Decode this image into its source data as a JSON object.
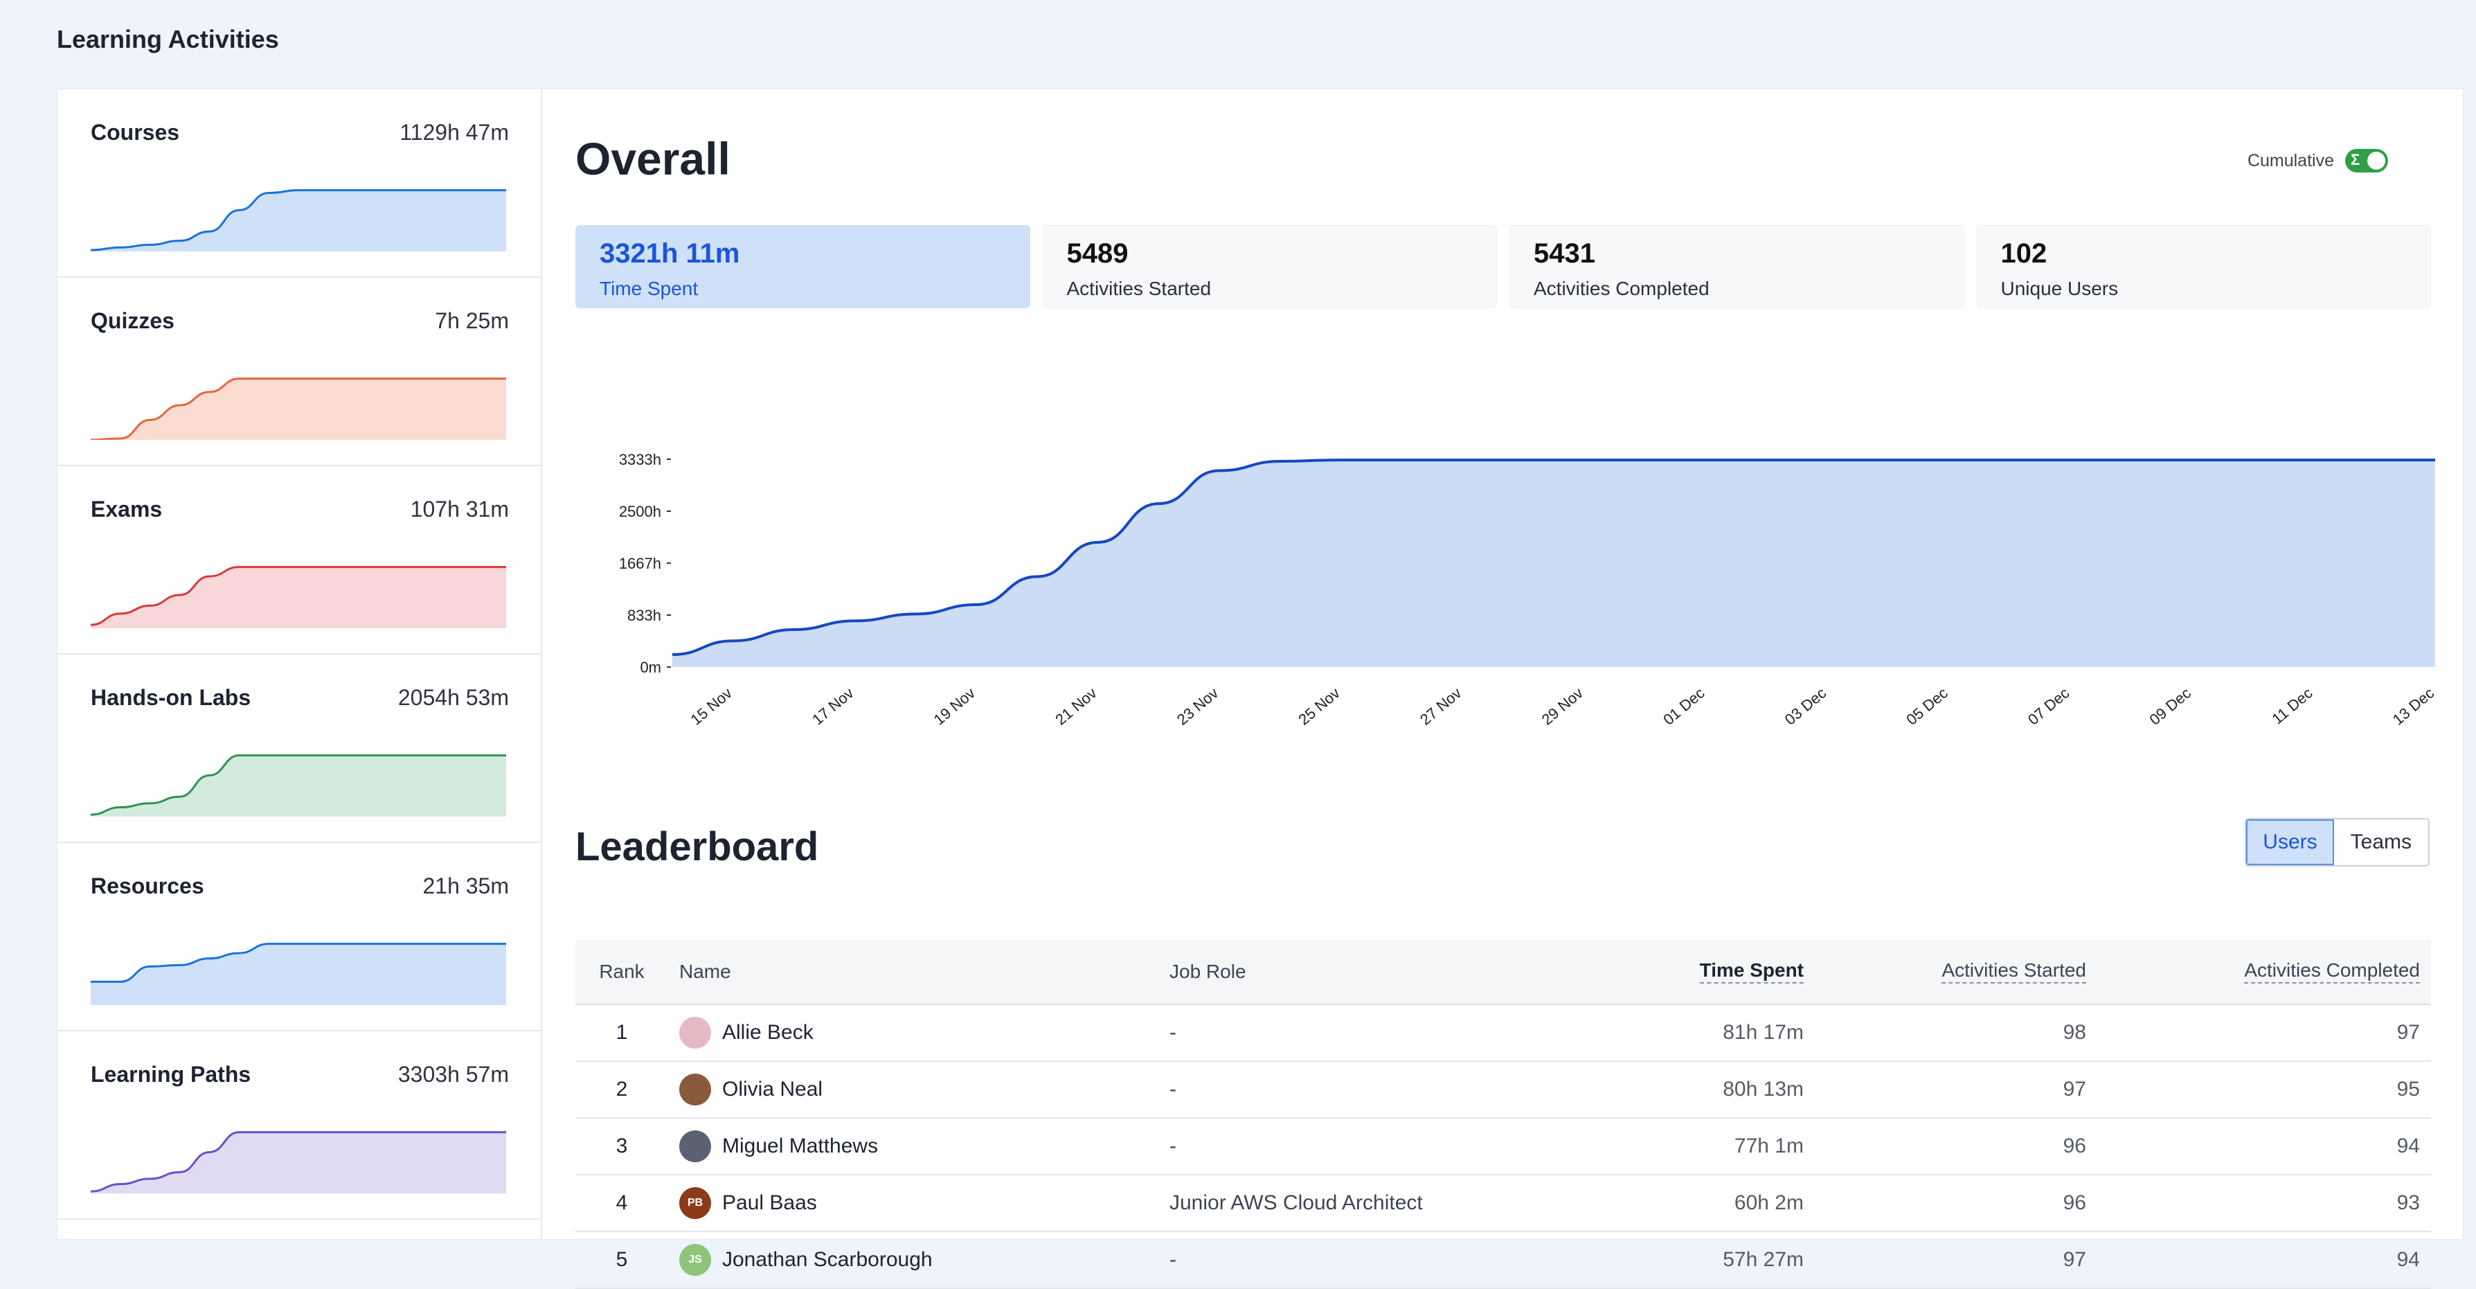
{
  "page": {
    "title": "Learning Activities"
  },
  "sidebar": {
    "items": [
      {
        "label": "Courses",
        "value": "1129h 47m",
        "color": "#1a73d9",
        "fill": "#cfe1f8",
        "spark": [
          0.02,
          0.06,
          0.1,
          0.16,
          0.3,
          0.62,
          0.88,
          0.92,
          0.92,
          0.92,
          0.92,
          0.92,
          0.92,
          0.92,
          0.92
        ]
      },
      {
        "label": "Quizzes",
        "value": "7h 25m",
        "color": "#e2693a",
        "fill": "#fbdcd1",
        "spark": [
          0.0,
          0.02,
          0.3,
          0.52,
          0.72,
          0.92,
          0.92,
          0.92,
          0.92,
          0.92,
          0.92,
          0.92,
          0.92,
          0.92,
          0.92
        ]
      },
      {
        "label": "Exams",
        "value": "107h 31m",
        "color": "#d63b3b",
        "fill": "#f8d7d9",
        "spark": [
          0.05,
          0.22,
          0.34,
          0.5,
          0.78,
          0.92,
          0.92,
          0.92,
          0.92,
          0.92,
          0.92,
          0.92,
          0.92,
          0.92,
          0.92
        ]
      },
      {
        "label": "Hands-on Labs",
        "value": "2054h 53m",
        "color": "#2f9453",
        "fill": "#d3ebdd",
        "spark": [
          0.03,
          0.14,
          0.2,
          0.3,
          0.62,
          0.92,
          0.92,
          0.92,
          0.92,
          0.92,
          0.92,
          0.92,
          0.92,
          0.92,
          0.92
        ]
      },
      {
        "label": "Resources",
        "value": "21h 35m",
        "color": "#1a73d9",
        "fill": "#cfe1f8",
        "spark": [
          0.35,
          0.35,
          0.58,
          0.6,
          0.7,
          0.78,
          0.92,
          0.92,
          0.92,
          0.92,
          0.92,
          0.92,
          0.92,
          0.92,
          0.92
        ]
      },
      {
        "label": "Learning Paths",
        "value": "3303h 57m",
        "color": "#6a4fc9",
        "fill": "#e0dbf3",
        "spark": [
          0.03,
          0.14,
          0.22,
          0.32,
          0.62,
          0.92,
          0.92,
          0.92,
          0.92,
          0.92,
          0.92,
          0.92,
          0.92,
          0.92,
          0.92
        ]
      }
    ]
  },
  "overall": {
    "title": "Overall",
    "cumulative_label": "Cumulative",
    "cumulative_on": true,
    "toggle_symbol": "Σ",
    "stats": [
      {
        "value": "3321h 11m",
        "label": "Time Spent",
        "active": true
      },
      {
        "value": "5489",
        "label": "Activities Started",
        "active": false
      },
      {
        "value": "5431",
        "label": "Activities Completed",
        "active": false
      },
      {
        "value": "102",
        "label": "Unique Users",
        "active": false
      }
    ]
  },
  "chart_data": {
    "type": "area",
    "title": "",
    "xlabel": "",
    "ylabel": "",
    "color": "#1748c0",
    "fill": "#cddcf5",
    "ylim": [
      0,
      3333
    ],
    "y_ticks": [
      "0m",
      "833h",
      "1667h",
      "2500h",
      "3333h"
    ],
    "x_tick_labels": [
      "15 Nov",
      "17 Nov",
      "19 Nov",
      "21 Nov",
      "23 Nov",
      "25 Nov",
      "27 Nov",
      "29 Nov",
      "01 Dec",
      "03 Dec",
      "05 Dec",
      "07 Dec",
      "09 Dec",
      "11 Dec",
      "13 Dec"
    ],
    "x": [
      "14 Nov",
      "15 Nov",
      "16 Nov",
      "17 Nov",
      "18 Nov",
      "19 Nov",
      "20 Nov",
      "21 Nov",
      "22 Nov",
      "23 Nov",
      "24 Nov",
      "25 Nov",
      "26 Nov",
      "27 Nov",
      "28 Nov",
      "29 Nov",
      "30 Nov",
      "01 Dec",
      "02 Dec",
      "03 Dec",
      "04 Dec",
      "05 Dec",
      "06 Dec",
      "07 Dec",
      "08 Dec",
      "09 Dec",
      "10 Dec",
      "11 Dec",
      "12 Dec",
      "13 Dec"
    ],
    "values": [
      200,
      420,
      600,
      740,
      850,
      1000,
      1450,
      2000,
      2620,
      3150,
      3300,
      3321,
      3321,
      3321,
      3321,
      3321,
      3321,
      3321,
      3321,
      3321,
      3321,
      3321,
      3321,
      3321,
      3321,
      3321,
      3321,
      3321,
      3321,
      3321
    ]
  },
  "leaderboard": {
    "title": "Leaderboard",
    "toggle": {
      "users": "Users",
      "teams": "Teams",
      "active": "users"
    },
    "columns": {
      "rank": "Rank",
      "name": "Name",
      "role": "Job Role",
      "time": "Time Spent",
      "started": "Activities Started",
      "completed": "Activities Completed"
    },
    "rows": [
      {
        "rank": "1",
        "name": "Allie Beck",
        "role": "-",
        "time": "81h 17m",
        "started": "98",
        "completed": "97",
        "initials": "",
        "avatar_color": "#e7b9c4"
      },
      {
        "rank": "2",
        "name": "Olivia Neal",
        "role": "-",
        "time": "80h 13m",
        "started": "97",
        "completed": "95",
        "initials": "",
        "avatar_color": "#8a5a3c"
      },
      {
        "rank": "3",
        "name": "Miguel Matthews",
        "role": "-",
        "time": "77h 1m",
        "started": "96",
        "completed": "94",
        "initials": "",
        "avatar_color": "#5b6170"
      },
      {
        "rank": "4",
        "name": "Paul Baas",
        "role": "Junior AWS Cloud Architect",
        "time": "60h 2m",
        "started": "96",
        "completed": "93",
        "initials": "PB",
        "avatar_color": "#8b3a1a"
      },
      {
        "rank": "5",
        "name": "Jonathan Scarborough",
        "role": "-",
        "time": "57h 27m",
        "started": "97",
        "completed": "94",
        "initials": "JS",
        "avatar_color": "#8fc37a"
      }
    ]
  }
}
